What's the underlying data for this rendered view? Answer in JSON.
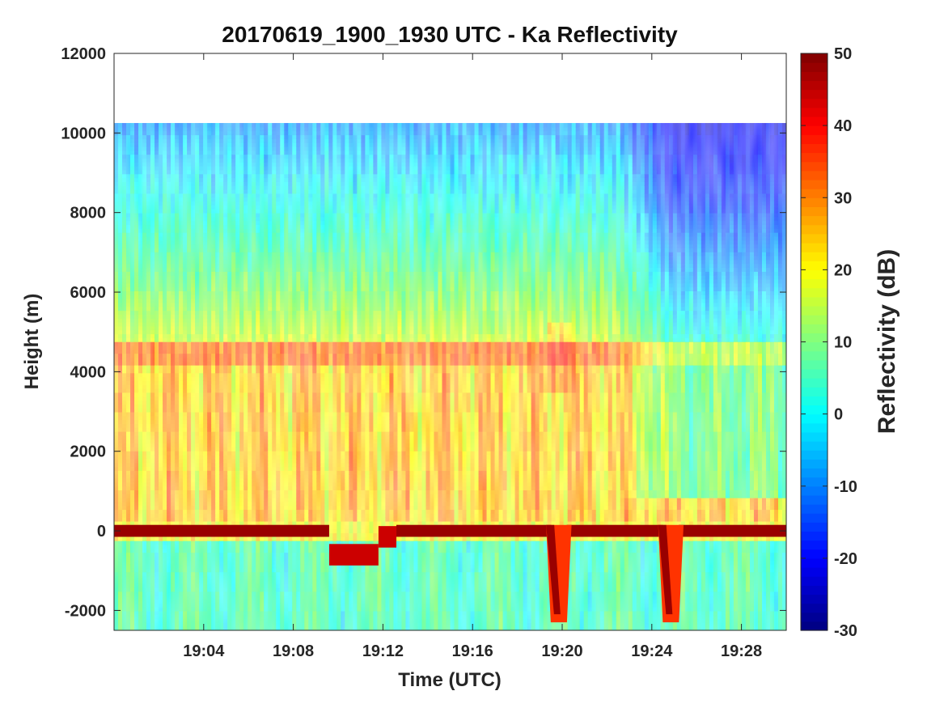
{
  "chart_data": {
    "type": "heatmap",
    "title": "20170619_1900_1930 UTC - Ka Reflectivity",
    "xlabel": "Time (UTC)",
    "ylabel": "Height (m)",
    "colorbar_label": "Reflectivity (dB)",
    "colormap": "jet",
    "x_range": [
      "19:00",
      "19:30"
    ],
    "xlim_minutes": [
      0,
      30
    ],
    "ylim": [
      -2500,
      12000
    ],
    "clim": [
      -30,
      50
    ],
    "x_ticks": [
      "19:04",
      "19:08",
      "19:12",
      "19:16",
      "19:20",
      "19:24",
      "19:28"
    ],
    "y_ticks": [
      "-2000",
      "0",
      "2000",
      "4000",
      "6000",
      "8000",
      "10000",
      "12000"
    ],
    "colorbar_ticks": [
      "-30",
      "-20",
      "-10",
      "0",
      "10",
      "20",
      "30",
      "40",
      "50"
    ],
    "data_top_height_m": 10250,
    "features": {
      "bright_band_height_m": 4600,
      "surface_echo_height_m": 0,
      "surface_echo_dBZ": 48,
      "surface_echo_dips": [
        {
          "time_min": [
            9.6,
            11.8
          ],
          "height_m": -600
        },
        {
          "time_min": [
            11.8,
            12.6
          ],
          "height_m": -150
        },
        {
          "time_min": [
            19.5,
            20.2
          ],
          "height_m": -2300
        },
        {
          "time_min": [
            24.5,
            25.2
          ],
          "height_m": -2300
        }
      ],
      "precip_layer_dBZ": 28,
      "upper_level_dBZ": 3
    }
  }
}
